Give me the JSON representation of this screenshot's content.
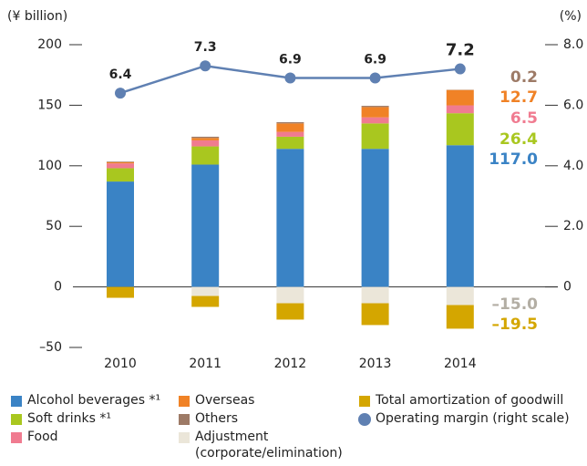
{
  "chart_data": {
    "type": "bar",
    "stacked": true,
    "ylabel": "(¥ billion)",
    "y2label": "(%)",
    "categories": [
      "2010",
      "2011",
      "2012",
      "2013",
      "2014"
    ],
    "ylim": [
      -50,
      200
    ],
    "yticks": [
      200,
      150,
      100,
      50,
      0,
      {
        "value": -50,
        "label": "–50"
      }
    ],
    "y2lim": [
      -2,
      8
    ],
    "y2ticks": [
      {
        "value": 8,
        "label": "8.0"
      },
      {
        "value": 6,
        "label": "6.0"
      },
      {
        "value": 4,
        "label": "4.0"
      },
      {
        "value": 2,
        "label": "2.0"
      },
      0
    ],
    "grid": false,
    "series": [
      {
        "name": "Alcohol beverages *¹",
        "color": "#3a83c5",
        "values": [
          87,
          101,
          114,
          114,
          117.0
        ],
        "value_labels": [
          null,
          null,
          null,
          null,
          "117.0"
        ]
      },
      {
        "name": "Soft drinks *¹",
        "color": "#a9c71f",
        "values": [
          11,
          15,
          10,
          21,
          26.4
        ],
        "value_labels": [
          null,
          null,
          null,
          null,
          "26.4"
        ]
      },
      {
        "name": "Food",
        "color": "#f07b90",
        "values": [
          4,
          5,
          4,
          5,
          6.5
        ],
        "value_labels": [
          null,
          null,
          null,
          null,
          "6.5"
        ]
      },
      {
        "name": "Overseas",
        "color": "#f08226",
        "values": [
          1,
          2,
          7,
          8.5,
          12.7
        ],
        "value_labels": [
          null,
          null,
          null,
          null,
          "12.7"
        ]
      },
      {
        "name": "Others",
        "color": "#9d7a66",
        "values": [
          0.5,
          1,
          1,
          1,
          0.2
        ],
        "value_labels": [
          null,
          null,
          null,
          null,
          "0.2"
        ]
      },
      {
        "name": "Adjustment (corporate/elimination)",
        "color": "#ebe6d9",
        "values": [
          0,
          -7.5,
          -13.5,
          -13.5,
          -15.0
        ],
        "value_labels": [
          null,
          null,
          null,
          null,
          "–15.0"
        ]
      },
      {
        "name": "Total amortization of goodwill",
        "color": "#d4a600",
        "values": [
          -9,
          -9,
          -13.5,
          -18,
          -19.5
        ],
        "value_labels": [
          null,
          null,
          null,
          null,
          "–19.5"
        ]
      },
      {
        "name": "Operating margin (right scale)",
        "color": "#5f80b2",
        "type": "line",
        "axis": "y2",
        "values": [
          6.4,
          7.3,
          6.9,
          6.9,
          7.2
        ]
      }
    ]
  }
}
